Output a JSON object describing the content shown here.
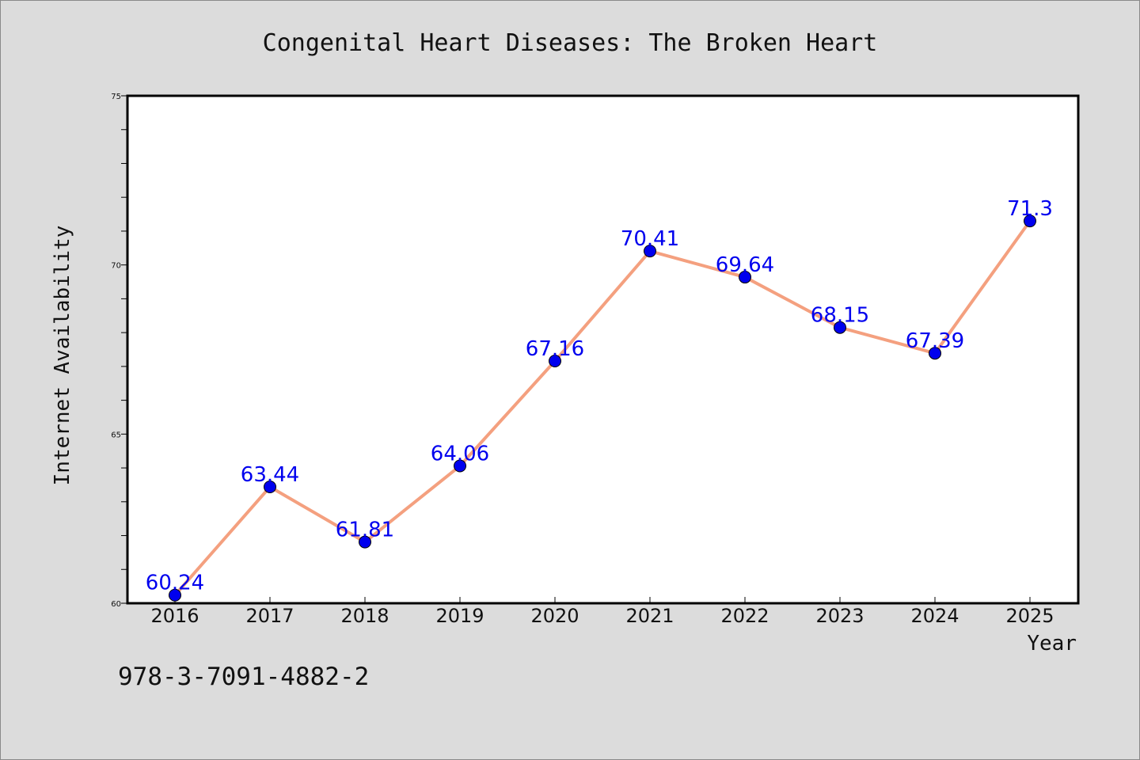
{
  "chart_data": {
    "type": "line",
    "title": "Congenital Heart Diseases: The Broken Heart",
    "xlabel": "Year",
    "ylabel": "Internet Availability",
    "x": [
      "2016",
      "2017",
      "2018",
      "2019",
      "2020",
      "2021",
      "2022",
      "2023",
      "2024",
      "2025"
    ],
    "series": [
      {
        "values": [
          60.24,
          63.44,
          61.81,
          64.06,
          67.16,
          70.41,
          69.64,
          68.15,
          67.39,
          71.3
        ],
        "labels": [
          "60.24",
          "63.44",
          "61.81",
          "64.06",
          "67.16",
          "70.41",
          "69.64",
          "68.15",
          "67.39",
          "71.3"
        ],
        "line_color": "#f4a07f",
        "marker_color": "#0000ee",
        "label_color": "#0000ee"
      }
    ],
    "ylim": [
      60,
      75
    ],
    "yticks": [
      "60",
      "65",
      "70",
      "75"
    ],
    "grid": false,
    "legend": "none"
  },
  "note": "978-3-7091-4882-2",
  "colors": {
    "background": "#dcdcdc",
    "plot_background": "#ffffff",
    "axis": "#000000"
  }
}
